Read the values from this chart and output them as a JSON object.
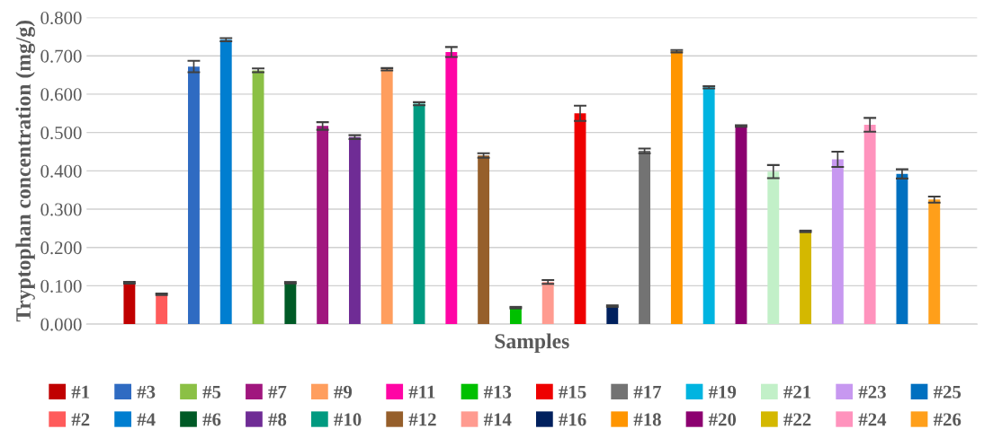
{
  "chart_data": {
    "type": "bar",
    "xlabel": "Samples",
    "ylabel": "Tryptophan concentration (mg/g)",
    "categories": [
      null
    ],
    "ylim": [
      0,
      0.8
    ],
    "yticks": [
      {
        "value": 0,
        "label": "0.000"
      },
      {
        "value": 0.1,
        "label": "0.100"
      },
      {
        "value": 0.2,
        "label": "0.200"
      },
      {
        "value": 0.3,
        "label": "0.300"
      },
      {
        "value": 0.4,
        "label": "0.400"
      },
      {
        "value": 0.5,
        "label": "0.500"
      },
      {
        "value": 0.6,
        "label": "0.600"
      },
      {
        "value": 0.7,
        "label": "0.700"
      },
      {
        "value": 0.8,
        "label": "0.800"
      }
    ],
    "grid": "y",
    "legend": "bottom",
    "series": [
      {
        "name": "#1",
        "color": "#c00000",
        "values": [
          0.108
        ],
        "errors": [
          0.002
        ]
      },
      {
        "name": "#2",
        "color": "#ff5b5b",
        "values": [
          0.078
        ],
        "errors": [
          0.002
        ]
      },
      {
        "name": "#3",
        "color": "#2f6bc2",
        "values": [
          0.672
        ],
        "errors": [
          0.015
        ]
      },
      {
        "name": "#4",
        "color": "#007ed0",
        "values": [
          0.742
        ],
        "errors": [
          0.004
        ]
      },
      {
        "name": "#5",
        "color": "#8bc045",
        "values": [
          0.662
        ],
        "errors": [
          0.005
        ]
      },
      {
        "name": "#6",
        "color": "#005a26",
        "values": [
          0.108
        ],
        "errors": [
          0.002
        ]
      },
      {
        "name": "#7",
        "color": "#a0167e",
        "values": [
          0.517
        ],
        "errors": [
          0.01
        ]
      },
      {
        "name": "#8",
        "color": "#6f2c95",
        "values": [
          0.488
        ],
        "errors": [
          0.005
        ]
      },
      {
        "name": "#9",
        "color": "#ff9e5e",
        "values": [
          0.665
        ],
        "errors": [
          0.003
        ]
      },
      {
        "name": "#10",
        "color": "#009a80",
        "values": [
          0.575
        ],
        "errors": [
          0.004
        ]
      },
      {
        "name": "#11",
        "color": "#ff05a5",
        "values": [
          0.71
        ],
        "errors": [
          0.013
        ]
      },
      {
        "name": "#12",
        "color": "#965f2b",
        "values": [
          0.44
        ],
        "errors": [
          0.006
        ]
      },
      {
        "name": "#13",
        "color": "#00c000",
        "values": [
          0.043
        ],
        "errors": [
          0.002
        ]
      },
      {
        "name": "#14",
        "color": "#ff9b90",
        "values": [
          0.11
        ],
        "errors": [
          0.005
        ]
      },
      {
        "name": "#15",
        "color": "#ee0000",
        "values": [
          0.55
        ],
        "errors": [
          0.02
        ]
      },
      {
        "name": "#16",
        "color": "#00205e",
        "values": [
          0.047
        ],
        "errors": [
          0.002
        ]
      },
      {
        "name": "#17",
        "color": "#737373",
        "values": [
          0.452
        ],
        "errors": [
          0.006
        ]
      },
      {
        "name": "#18",
        "color": "#ff9500",
        "values": [
          0.712
        ],
        "errors": [
          0.003
        ]
      },
      {
        "name": "#19",
        "color": "#00b4e0",
        "values": [
          0.618
        ],
        "errors": [
          0.003
        ]
      },
      {
        "name": "#20",
        "color": "#8c0070",
        "values": [
          0.517
        ],
        "errors": [
          0.002
        ]
      },
      {
        "name": "#21",
        "color": "#c2f0c8",
        "values": [
          0.398
        ],
        "errors": [
          0.017
        ]
      },
      {
        "name": "#22",
        "color": "#d4b800",
        "values": [
          0.242
        ],
        "errors": [
          0.002
        ]
      },
      {
        "name": "#23",
        "color": "#c798f0",
        "values": [
          0.43
        ],
        "errors": [
          0.02
        ]
      },
      {
        "name": "#24",
        "color": "#ff93bd",
        "values": [
          0.52
        ],
        "errors": [
          0.018
        ]
      },
      {
        "name": "#25",
        "color": "#0070c0",
        "values": [
          0.392
        ],
        "errors": [
          0.012
        ]
      },
      {
        "name": "#26",
        "color": "#ff9f1a",
        "values": [
          0.325
        ],
        "errors": [
          0.008
        ]
      }
    ]
  }
}
